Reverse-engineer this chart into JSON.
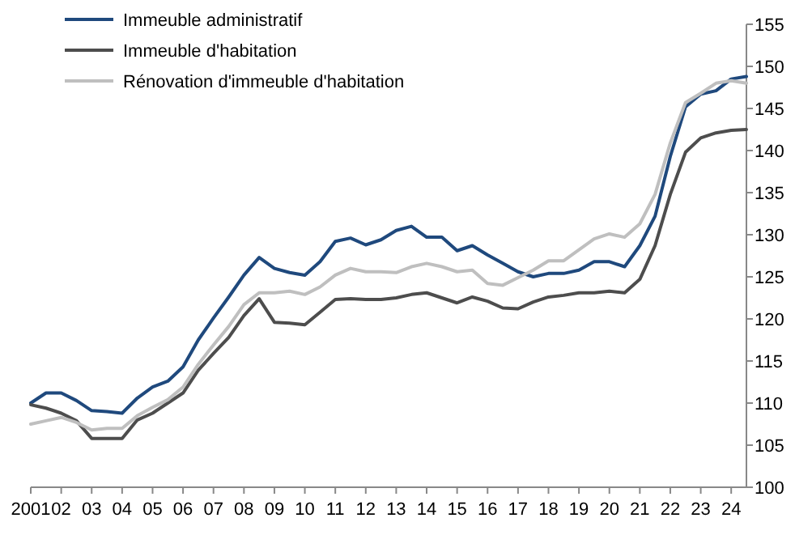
{
  "chart_data": {
    "type": "line",
    "xlim": [
      2001,
      2024.5
    ],
    "xticks": [
      {
        "value": 2001,
        "label": "2001"
      },
      {
        "value": 2002,
        "label": "02"
      },
      {
        "value": 2003,
        "label": "03"
      },
      {
        "value": 2004,
        "label": "04"
      },
      {
        "value": 2005,
        "label": "05"
      },
      {
        "value": 2006,
        "label": "06"
      },
      {
        "value": 2007,
        "label": "07"
      },
      {
        "value": 2008,
        "label": "08"
      },
      {
        "value": 2009,
        "label": "09"
      },
      {
        "value": 2010,
        "label": "10"
      },
      {
        "value": 2011,
        "label": "11"
      },
      {
        "value": 2012,
        "label": "12"
      },
      {
        "value": 2013,
        "label": "13"
      },
      {
        "value": 2014,
        "label": "14"
      },
      {
        "value": 2015,
        "label": "15"
      },
      {
        "value": 2016,
        "label": "16"
      },
      {
        "value": 2017,
        "label": "17"
      },
      {
        "value": 2018,
        "label": "18"
      },
      {
        "value": 2019,
        "label": "19"
      },
      {
        "value": 2020,
        "label": "20"
      },
      {
        "value": 2021,
        "label": "21"
      },
      {
        "value": 2022,
        "label": "22"
      },
      {
        "value": 2023,
        "label": "23"
      },
      {
        "value": 2024,
        "label": "24"
      }
    ],
    "x": [
      2001,
      2001.5,
      2002,
      2002.5,
      2003,
      2003.5,
      2004,
      2004.5,
      2005,
      2005.5,
      2006,
      2006.5,
      2007,
      2007.5,
      2008,
      2008.5,
      2009,
      2009.5,
      2010,
      2010.5,
      2011,
      2011.5,
      2012,
      2012.5,
      2013,
      2013.5,
      2014,
      2014.5,
      2015,
      2015.5,
      2016,
      2016.5,
      2017,
      2017.5,
      2018,
      2018.5,
      2019,
      2019.5,
      2020,
      2020.5,
      2021,
      2021.5,
      2022,
      2022.5,
      2023,
      2023.5,
      2024,
      2024.5
    ],
    "ylim": [
      100,
      155
    ],
    "yticks": [
      100,
      105,
      110,
      115,
      120,
      125,
      130,
      135,
      140,
      145,
      150,
      155
    ],
    "grid": false,
    "legend": "top left",
    "marker": "none",
    "line_style": "solid",
    "series": [
      {
        "name": "Immeuble administratif",
        "color": "#1f497d",
        "values": [
          110.0,
          111.2,
          111.2,
          110.3,
          109.1,
          109.0,
          108.8,
          110.6,
          111.9,
          112.6,
          114.3,
          117.5,
          120.1,
          122.6,
          125.2,
          127.3,
          126.0,
          125.5,
          125.2,
          126.8,
          129.2,
          129.6,
          128.8,
          129.4,
          130.5,
          131.0,
          129.7,
          129.7,
          128.1,
          128.7,
          127.6,
          126.6,
          125.6,
          125.0,
          125.4,
          125.4,
          125.8,
          126.8,
          126.8,
          126.2,
          128.7,
          132.2,
          139.3,
          145.2,
          146.7,
          147.1,
          148.5,
          148.8
        ]
      },
      {
        "name": "Immeuble d'habitation",
        "color": "#4d4d4d",
        "values": [
          109.8,
          109.4,
          108.8,
          107.9,
          105.8,
          105.8,
          105.8,
          108.0,
          108.8,
          110.0,
          111.2,
          113.9,
          115.9,
          117.8,
          120.4,
          122.4,
          119.6,
          119.5,
          119.3,
          120.8,
          122.3,
          122.4,
          122.3,
          122.3,
          122.5,
          122.9,
          123.1,
          122.5,
          121.9,
          122.6,
          122.1,
          121.3,
          121.2,
          122.0,
          122.6,
          122.8,
          123.1,
          123.1,
          123.3,
          123.1,
          124.7,
          128.7,
          134.8,
          139.8,
          141.5,
          142.1,
          142.4,
          142.5
        ]
      },
      {
        "name": "Rénovation d'immeuble d'habitation",
        "color": "#bfbfbf",
        "values": [
          107.5,
          107.9,
          108.3,
          107.7,
          106.8,
          107.0,
          107.0,
          108.5,
          109.5,
          110.4,
          111.9,
          114.6,
          116.9,
          119.1,
          121.7,
          123.1,
          123.1,
          123.3,
          122.9,
          123.8,
          125.2,
          126.0,
          125.6,
          125.6,
          125.5,
          126.2,
          126.6,
          126.2,
          125.6,
          125.8,
          124.2,
          124.0,
          124.9,
          125.8,
          126.9,
          126.9,
          128.2,
          129.5,
          130.1,
          129.7,
          131.3,
          134.8,
          140.9,
          145.7,
          146.8,
          148.0,
          148.3,
          148.0
        ]
      }
    ]
  }
}
